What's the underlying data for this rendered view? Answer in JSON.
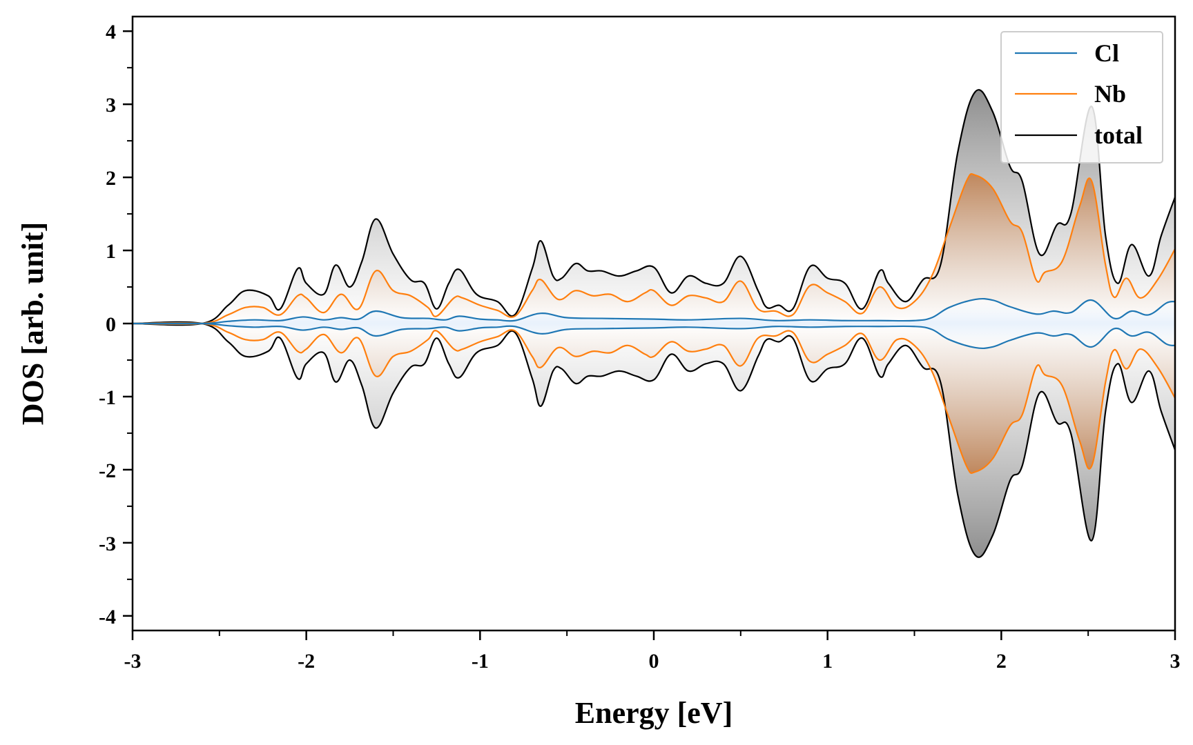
{
  "chart_data": {
    "type": "line",
    "title": "",
    "xlabel": "Energy [eV]",
    "ylabel": "DOS [arb. unit]",
    "xlim": [
      -3,
      3
    ],
    "ylim": [
      -4.2,
      4.2
    ],
    "xticks": [
      -3,
      -2,
      -1,
      0,
      1,
      2,
      3
    ],
    "xtick_labels": [
      "-3",
      "-2",
      "-1",
      "0",
      "1",
      "2",
      "3"
    ],
    "yticks": [
      -4,
      -3,
      -2,
      -1,
      0,
      1,
      2,
      3,
      4
    ],
    "ytick_labels": [
      "-4",
      "-3",
      "-2",
      "-1",
      "0",
      "1",
      "2",
      "3",
      "4"
    ],
    "grid": false,
    "legend": {
      "position": "top-right",
      "entries": [
        "Cl",
        "Nb",
        "total"
      ]
    },
    "mirrored": true,
    "fill": "gradient shading between curves and zero line",
    "colors": {
      "Cl": "#1f77b4",
      "Nb": "#ff7f0e",
      "total": "#000000"
    },
    "series": [
      {
        "name": "Cl",
        "x": [
          -3.0,
          -2.6,
          -2.45,
          -2.3,
          -2.15,
          -2.02,
          -1.9,
          -1.8,
          -1.7,
          -1.6,
          -1.45,
          -1.3,
          -1.2,
          -1.12,
          -1.0,
          -0.9,
          -0.8,
          -0.65,
          -0.5,
          -0.3,
          0.0,
          0.2,
          0.5,
          0.7,
          0.9,
          1.1,
          1.3,
          1.5,
          1.6,
          1.7,
          1.85,
          1.95,
          2.05,
          2.2,
          2.3,
          2.4,
          2.52,
          2.65,
          2.75,
          2.85,
          2.95,
          3.0
        ],
        "y": [
          0.0,
          0.0,
          0.03,
          0.05,
          0.04,
          0.09,
          0.05,
          0.08,
          0.06,
          0.17,
          0.08,
          0.07,
          0.05,
          0.1,
          0.06,
          0.05,
          0.04,
          0.14,
          0.08,
          0.07,
          0.06,
          0.05,
          0.07,
          0.04,
          0.05,
          0.04,
          0.04,
          0.04,
          0.08,
          0.22,
          0.33,
          0.32,
          0.23,
          0.13,
          0.17,
          0.15,
          0.32,
          0.07,
          0.17,
          0.12,
          0.28,
          0.3
        ]
      },
      {
        "name": "Nb",
        "x": [
          -3.0,
          -2.6,
          -2.45,
          -2.35,
          -2.25,
          -2.15,
          -2.05,
          -2.0,
          -1.9,
          -1.8,
          -1.7,
          -1.6,
          -1.5,
          -1.4,
          -1.3,
          -1.25,
          -1.15,
          -1.1,
          -1.0,
          -0.9,
          -0.8,
          -0.7,
          -0.65,
          -0.55,
          -0.45,
          -0.35,
          -0.25,
          -0.15,
          -0.05,
          0.0,
          0.1,
          0.2,
          0.3,
          0.4,
          0.5,
          0.6,
          0.7,
          0.8,
          0.9,
          1.0,
          1.1,
          1.2,
          1.3,
          1.4,
          1.5,
          1.6,
          1.7,
          1.8,
          1.85,
          1.95,
          2.05,
          2.12,
          2.2,
          2.25,
          2.35,
          2.45,
          2.52,
          2.6,
          2.65,
          2.72,
          2.8,
          2.9,
          3.0
        ],
        "y": [
          0.0,
          0.0,
          0.12,
          0.22,
          0.22,
          0.12,
          0.38,
          0.35,
          0.15,
          0.4,
          0.2,
          0.72,
          0.45,
          0.38,
          0.22,
          0.1,
          0.35,
          0.35,
          0.25,
          0.18,
          0.1,
          0.45,
          0.6,
          0.33,
          0.45,
          0.38,
          0.4,
          0.3,
          0.42,
          0.45,
          0.25,
          0.38,
          0.35,
          0.3,
          0.58,
          0.2,
          0.17,
          0.12,
          0.52,
          0.42,
          0.3,
          0.14,
          0.5,
          0.22,
          0.3,
          0.65,
          1.3,
          1.95,
          2.03,
          1.85,
          1.4,
          1.25,
          0.6,
          0.7,
          0.85,
          1.6,
          1.95,
          0.8,
          0.36,
          0.62,
          0.35,
          0.6,
          1.02
        ]
      },
      {
        "name": "total",
        "x": [
          -3.0,
          -2.6,
          -2.45,
          -2.35,
          -2.22,
          -2.15,
          -2.05,
          -2.0,
          -1.9,
          -1.83,
          -1.75,
          -1.68,
          -1.6,
          -1.5,
          -1.4,
          -1.32,
          -1.25,
          -1.18,
          -1.12,
          -1.02,
          -0.9,
          -0.8,
          -0.7,
          -0.65,
          -0.58,
          -0.53,
          -0.45,
          -0.38,
          -0.3,
          -0.2,
          -0.1,
          0.0,
          0.1,
          0.2,
          0.3,
          0.4,
          0.5,
          0.6,
          0.65,
          0.72,
          0.8,
          0.9,
          1.0,
          1.1,
          1.2,
          1.3,
          1.35,
          1.45,
          1.55,
          1.65,
          1.75,
          1.85,
          1.95,
          2.05,
          2.12,
          2.22,
          2.32,
          2.4,
          2.52,
          2.6,
          2.67,
          2.75,
          2.85,
          2.92,
          3.0
        ],
        "y": [
          0.0,
          0.0,
          0.25,
          0.45,
          0.38,
          0.2,
          0.75,
          0.55,
          0.4,
          0.8,
          0.5,
          0.85,
          1.43,
          0.95,
          0.6,
          0.55,
          0.2,
          0.55,
          0.74,
          0.4,
          0.3,
          0.12,
          0.75,
          1.13,
          0.65,
          0.62,
          0.82,
          0.72,
          0.72,
          0.65,
          0.72,
          0.77,
          0.42,
          0.65,
          0.55,
          0.55,
          0.92,
          0.45,
          0.22,
          0.25,
          0.2,
          0.78,
          0.62,
          0.55,
          0.2,
          0.72,
          0.55,
          0.3,
          0.6,
          0.8,
          2.35,
          3.17,
          2.9,
          2.15,
          1.95,
          0.95,
          1.35,
          1.5,
          2.97,
          1.2,
          0.55,
          1.08,
          0.65,
          1.2,
          1.73
        ]
      }
    ]
  }
}
